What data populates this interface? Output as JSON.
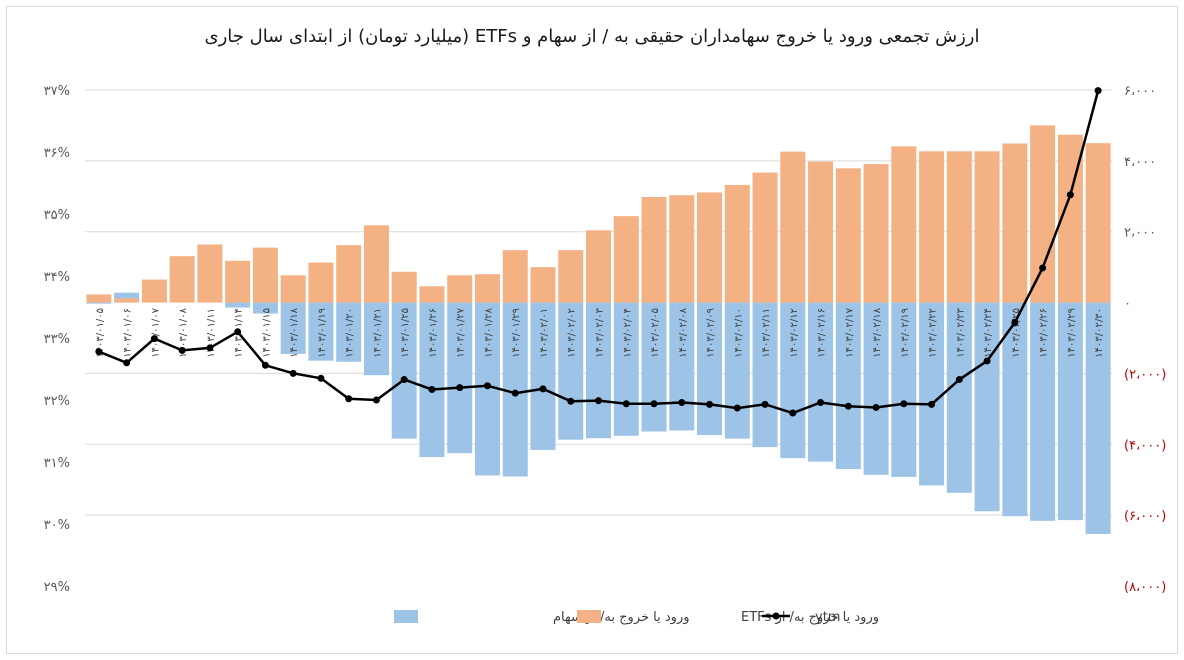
{
  "chart_data": {
    "type": "bar",
    "title": "ارزش تجمعی ورود یا خروج سهامداران حقیقی به / از سهام و ETFs (میلیارد تومان) از ابتدای سال جاری",
    "categories": [
      "۱۴۰۳/۰۱/۰۵",
      "۱۴۰۳/۰۱/۰۶",
      "۱۴۰۳/۰۱/۰۷",
      "۱۴۰۳/۰۱/۰۸",
      "۱۴۰۳/۰۱/۱۱",
      "۱۴۰۳/۰۱/۱۴",
      "۱۴۰۳/۰۱/۱۵",
      "۱۴۰۳/۰۱/۱۸",
      "۱۴۰۳/۰۱/۱۹",
      "۱۴۰۳/۰۱/۲۰",
      "۱۴۰۳/۰۱/۲۱",
      "۱۴۰۳/۰۱/۲۵",
      "۱۴۰۳/۰۱/۲۶",
      "۱۴۰۳/۰۱/۲۷",
      "۱۴۰۳/۰۱/۲۸",
      "۱۴۰۳/۰۱/۲۹",
      "۱۴۰۳/۰۲/۰۱",
      "۱۴۰۳/۰۲/۰۲",
      "۱۴۰۳/۰۲/۰۳",
      "۱۴۰۳/۰۲/۰۴",
      "۱۴۰۳/۰۲/۰۵",
      "۱۴۰۳/۰۲/۰۸",
      "۱۴۰۳/۰۲/۰۹",
      "۱۴۰۳/۰۲/۱۰",
      "۱۴۰۳/۰۲/۱۱",
      "۱۴۰۳/۰۲/۱۲",
      "۱۴۰۳/۰۲/۱۶",
      "۱۴۰۳/۰۲/۱۷",
      "۱۴۰۳/۰۲/۱۸",
      "۱۴۰۳/۰۲/۱۹",
      "۱۴۰۳/۰۲/۲۲",
      "۱۴۰۳/۰۲/۲۳",
      "۱۴۰۳/۰۲/۲۴",
      "۱۴۰۳/۰۲/۲۵",
      "۱۴۰۳/۰۲/۲۶",
      "۱۴۰۳/۰۲/۲۹",
      "۱۴۰۳/۰۲/۳۰"
    ],
    "series": [
      {
        "name": "ورود یا خروج به/ از سهام",
        "kind": "bar",
        "axis": "right",
        "color": "#9dc3e6",
        "values": [
          -30,
          280,
          0,
          0,
          0,
          -140,
          -310,
          -1450,
          -1640,
          -1670,
          -2050,
          -3840,
          -4360,
          -4250,
          -4880,
          -4910,
          -4160,
          -3870,
          -3830,
          -3760,
          -3640,
          -3610,
          -3740,
          -3840,
          -4080,
          -4390,
          -4490,
          -4700,
          -4860,
          -4920,
          -5160,
          -5370,
          -5890,
          -6030,
          -6160,
          -6140,
          -6530
        ]
      },
      {
        "name": "ورود یا خروج به/ از ETFs",
        "kind": "bar",
        "axis": "right",
        "color": "#f4b183",
        "values": [
          230,
          120,
          650,
          1310,
          1640,
          1180,
          1550,
          770,
          1130,
          1620,
          2180,
          870,
          460,
          770,
          800,
          1480,
          1000,
          1480,
          2040,
          2440,
          2980,
          3030,
          3110,
          3320,
          3670,
          4260,
          3980,
          3790,
          3910,
          4410,
          4270,
          4270,
          4270,
          4490,
          5000,
          4740,
          4500
        ]
      },
      {
        "name": "ytm",
        "kind": "line",
        "axis": "left",
        "color": "#000000",
        "values": [
          32.78,
          32.6,
          32.99,
          32.8,
          32.84,
          33.1,
          32.56,
          32.43,
          32.35,
          32.02,
          32.0,
          32.33,
          32.17,
          32.2,
          32.23,
          32.11,
          32.18,
          31.98,
          31.99,
          31.94,
          31.94,
          31.96,
          31.93,
          31.87,
          31.93,
          31.79,
          31.96,
          31.9,
          31.88,
          31.94,
          31.93,
          32.33,
          32.63,
          33.25,
          34.13,
          35.31,
          36.99
        ]
      }
    ],
    "y_left": {
      "min": 29,
      "max": 37,
      "ticks": [
        "۲۹%",
        "۳۰%",
        "۳۱%",
        "۳۲%",
        "۳۳%",
        "۳۴%",
        "۳۵%",
        "۳۶%",
        "۳۷%"
      ]
    },
    "y_right": {
      "min": -8000,
      "max": 6000,
      "ticks": [
        "(۸،۰۰۰)",
        "(۶،۰۰۰)",
        "(۴،۰۰۰)",
        "(۲،۰۰۰)",
        "۰",
        "۲،۰۰۰",
        "۴،۰۰۰",
        "۶،۰۰۰"
      ],
      "negative_color": "#c00000"
    },
    "grid": true,
    "legend": {
      "placement": "bottom",
      "items": [
        "ورود یا خروج به/ از سهام",
        "ورود یا خروج به/ از ETFs",
        "ytm"
      ]
    }
  }
}
